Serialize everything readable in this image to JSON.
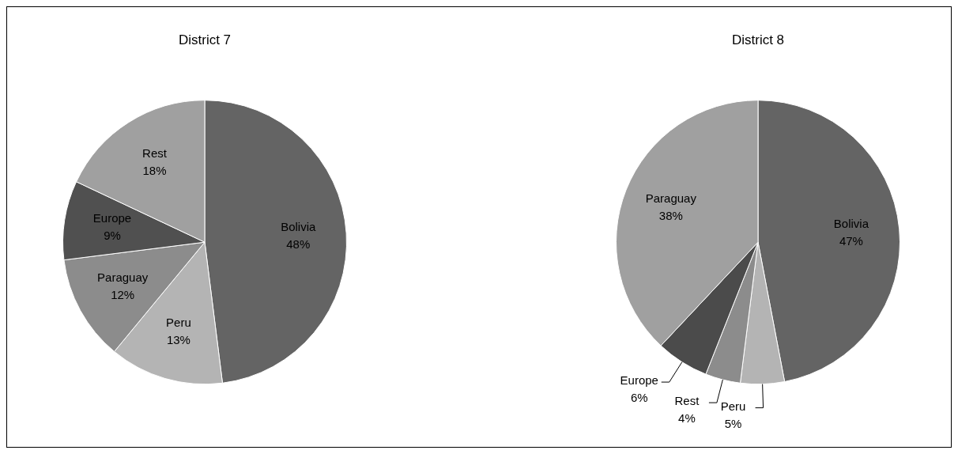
{
  "chart_data": [
    {
      "type": "pie",
      "title": "District 7",
      "categories": [
        "Bolivia",
        "Peru",
        "Paraguay",
        "Europe",
        "Rest"
      ],
      "values": [
        48,
        13,
        12,
        9,
        18
      ],
      "value_labels": [
        "48%",
        "13%",
        "12%",
        "9%",
        "18%"
      ],
      "colors": [
        "#646464",
        "#b4b4b4",
        "#8c8c8c",
        "#505050",
        "#a0a0a0"
      ],
      "legend": false
    },
    {
      "type": "pie",
      "title": "District 8",
      "categories": [
        "Bolivia",
        "Peru",
        "Rest",
        "Europe",
        "Paraguay"
      ],
      "values": [
        47,
        5,
        4,
        6,
        38
      ],
      "value_labels": [
        "47%",
        "5%",
        "4%",
        "6%",
        "38%"
      ],
      "colors": [
        "#646464",
        "#b4b4b4",
        "#8c8c8c",
        "#4b4b4b",
        "#a0a0a0"
      ],
      "legend": false
    }
  ]
}
